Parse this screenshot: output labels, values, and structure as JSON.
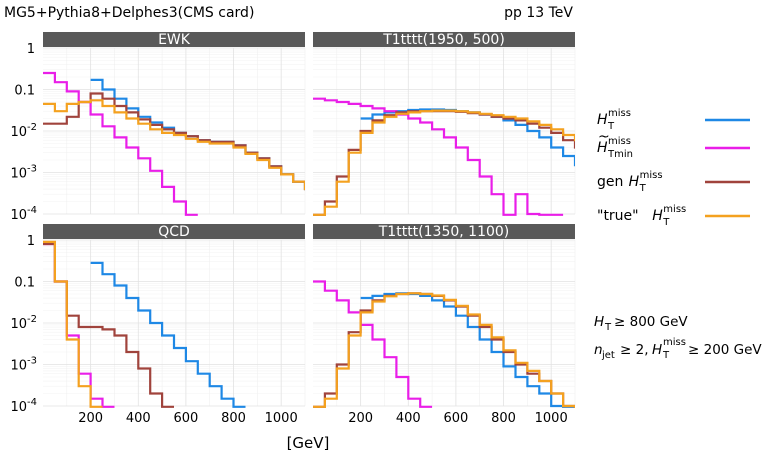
{
  "header": {
    "left": "MG5+Pythia8+Delphes3(CMS card)",
    "right": "pp 13 TeV"
  },
  "chart_data": {
    "type": "line",
    "subtype": "step-histogram-facets",
    "xlabel": "[GeV]",
    "x_ticks": [
      200,
      400,
      600,
      800,
      1000
    ],
    "xlim": [
      0,
      1100
    ],
    "y_scale": "log",
    "ylim": [
      0.0001,
      1
    ],
    "y_tick_labels": [
      "1",
      "0.1",
      "10^-2",
      "10^-3",
      "10^-4"
    ],
    "y_tick_values": [
      1,
      0.1,
      0.01,
      0.001,
      0.0001
    ],
    "grid": true,
    "legend_placement": "right",
    "annotations": [
      "H_T ≥ 800 GeV",
      "n_jet ≥ 2, H_T^miss ≥ 200 GeV"
    ],
    "series_styles": [
      {
        "key": "HTmiss",
        "label_main": "H",
        "label_sub": "T",
        "label_sup": "miss",
        "prefix": "",
        "tilde": false,
        "color": "#1e88e5"
      },
      {
        "key": "HTmin",
        "label_main": "H",
        "label_sub": "Tmin",
        "label_sup": "miss",
        "prefix": "",
        "tilde": true,
        "color": "#e91ee8"
      },
      {
        "key": "gen",
        "label_main": "H",
        "label_sub": "T",
        "label_sup": "miss",
        "prefix": "gen ",
        "tilde": false,
        "color": "#a0433c"
      },
      {
        "key": "true",
        "label_main": "H",
        "label_sub": "T",
        "label_sup": "miss",
        "prefix": "\"true\" ",
        "tilde": false,
        "color": "#f4a11f"
      }
    ],
    "panels": [
      {
        "title": "EWK",
        "series": [
          {
            "key": "HTmiss",
            "x": [
              200,
              250,
              300,
              350,
              400,
              450,
              500,
              550,
              600,
              650,
              700,
              750,
              800,
              850,
              900,
              950,
              1000,
              1050,
              1100
            ],
            "y": [
              0.17,
              0.1,
              0.06,
              0.035,
              0.022,
              0.016,
              0.012,
              0.009,
              0.0075,
              0.006,
              0.0055,
              0.0055,
              0.0045,
              0.003,
              0.0022,
              0.0014,
              0.0009,
              0.0006,
              0.0004
            ]
          },
          {
            "key": "HTmin",
            "x": [
              0,
              50,
              100,
              150,
              200,
              250,
              300,
              350,
              400,
              450,
              500,
              550,
              600
            ],
            "y": [
              0.25,
              0.15,
              0.09,
              0.05,
              0.025,
              0.013,
              0.007,
              0.004,
              0.0022,
              0.0011,
              0.00045,
              0.0002,
              9e-05
            ]
          },
          {
            "key": "gen",
            "x": [
              0,
              50,
              100,
              150,
              200,
              250,
              300,
              350,
              400,
              450,
              500,
              550,
              600,
              650,
              700,
              750,
              800,
              850,
              900,
              950,
              1000,
              1050,
              1100
            ],
            "y": [
              0.015,
              0.015,
              0.022,
              0.05,
              0.08,
              0.06,
              0.04,
              0.028,
              0.019,
              0.014,
              0.011,
              0.009,
              0.0075,
              0.006,
              0.0055,
              0.0055,
              0.0045,
              0.003,
              0.0022,
              0.0014,
              0.0009,
              0.0006,
              0.0004
            ]
          },
          {
            "key": "true",
            "x": [
              0,
              50,
              100,
              150,
              200,
              250,
              300,
              350,
              400,
              450,
              500,
              550,
              600,
              650,
              700,
              750,
              800,
              850,
              900,
              950,
              1000,
              1050,
              1100
            ],
            "y": [
              0.045,
              0.03,
              0.045,
              0.05,
              0.055,
              0.04,
              0.028,
              0.02,
              0.015,
              0.011,
              0.009,
              0.008,
              0.0065,
              0.0055,
              0.005,
              0.005,
              0.004,
              0.0028,
              0.002,
              0.0013,
              0.0009,
              0.0006,
              0.0004
            ]
          }
        ]
      },
      {
        "title": "T1tttt(1950, 500)",
        "series": [
          {
            "key": "HTmiss",
            "x": [
              200,
              250,
              300,
              350,
              400,
              450,
              500,
              550,
              600,
              650,
              700,
              750,
              800,
              850,
              900,
              950,
              1000,
              1050,
              1100
            ],
            "y": [
              0.02,
              0.025,
              0.028,
              0.03,
              0.032,
              0.033,
              0.033,
              0.032,
              0.03,
              0.028,
              0.025,
              0.022,
              0.018,
              0.014,
              0.01,
              0.007,
              0.004,
              0.0025,
              0.0015
            ]
          },
          {
            "key": "HTmin",
            "x": [
              0,
              50,
              100,
              150,
              200,
              250,
              300,
              350,
              400,
              450,
              500,
              550,
              600,
              650,
              700,
              750,
              800,
              850,
              900,
              950,
              1000
            ],
            "y": [
              0.06,
              0.055,
              0.05,
              0.045,
              0.04,
              0.035,
              0.03,
              0.025,
              0.02,
              0.016,
              0.011,
              0.007,
              0.004,
              0.002,
              0.0008,
              0.0003,
              9e-05,
              0.0003,
              0.0001,
              9e-05,
              9e-05
            ]
          },
          {
            "key": "gen",
            "x": [
              0,
              50,
              100,
              150,
              200,
              250,
              300,
              350,
              400,
              450,
              500,
              550,
              600,
              650,
              700,
              750,
              800,
              850,
              900,
              950,
              1000,
              1050,
              1100
            ],
            "y": [
              9e-05,
              0.0002,
              0.0008,
              0.0035,
              0.01,
              0.018,
              0.024,
              0.028,
              0.03,
              0.03,
              0.03,
              0.03,
              0.029,
              0.027,
              0.025,
              0.022,
              0.02,
              0.018,
              0.015,
              0.012,
              0.009,
              0.006,
              0.004
            ]
          },
          {
            "key": "true",
            "x": [
              0,
              50,
              100,
              150,
              200,
              250,
              300,
              350,
              400,
              450,
              500,
              550,
              600,
              650,
              700,
              750,
              800,
              850,
              900,
              950,
              1000,
              1050,
              1100
            ],
            "y": [
              9e-05,
              0.00015,
              0.0006,
              0.003,
              0.009,
              0.016,
              0.022,
              0.026,
              0.028,
              0.03,
              0.031,
              0.031,
              0.03,
              0.028,
              0.026,
              0.024,
              0.022,
              0.02,
              0.017,
              0.014,
              0.011,
              0.008,
              0.006
            ]
          }
        ]
      },
      {
        "title": "QCD",
        "series": [
          {
            "key": "HTmiss",
            "x": [
              200,
              250,
              300,
              350,
              400,
              450,
              500,
              550,
              600,
              650,
              700,
              750,
              800
            ],
            "y": [
              0.28,
              0.15,
              0.08,
              0.04,
              0.02,
              0.01,
              0.005,
              0.0025,
              0.0012,
              0.0006,
              0.0003,
              0.00015,
              9e-05
            ]
          },
          {
            "key": "HTmin",
            "x": [
              0,
              50,
              100,
              150,
              200,
              250
            ],
            "y": [
              0.8,
              0.1,
              0.005,
              0.0006,
              0.00015,
              9e-05
            ]
          },
          {
            "key": "gen",
            "x": [
              0,
              50,
              100,
              150,
              200,
              250,
              300,
              350,
              400,
              450,
              500
            ],
            "y": [
              0.8,
              0.1,
              0.015,
              0.008,
              0.008,
              0.007,
              0.005,
              0.002,
              0.0008,
              0.0002,
              9e-05
            ]
          },
          {
            "key": "true",
            "x": [
              0,
              50,
              100,
              150,
              200
            ],
            "y": [
              0.9,
              0.1,
              0.004,
              0.0003,
              9e-05
            ]
          }
        ]
      },
      {
        "title": "T1tttt(1350, 1100)",
        "series": [
          {
            "key": "HTmiss",
            "x": [
              200,
              250,
              300,
              350,
              400,
              450,
              500,
              550,
              600,
              650,
              700,
              750,
              800,
              850,
              900,
              950,
              1000,
              1050,
              1100
            ],
            "y": [
              0.04,
              0.045,
              0.05,
              0.052,
              0.05,
              0.045,
              0.035,
              0.025,
              0.015,
              0.008,
              0.004,
              0.002,
              0.0009,
              0.0005,
              0.0003,
              0.0002,
              0.0001,
              9e-05,
              9e-05
            ]
          },
          {
            "key": "HTmin",
            "x": [
              0,
              50,
              100,
              150,
              200,
              250,
              300,
              350,
              400,
              450
            ],
            "y": [
              0.1,
              0.06,
              0.035,
              0.018,
              0.009,
              0.004,
              0.0015,
              0.0005,
              0.00015,
              9e-05
            ]
          },
          {
            "key": "gen",
            "x": [
              0,
              50,
              100,
              150,
              200,
              250,
              300,
              350,
              400,
              450,
              500,
              550,
              600,
              650,
              700,
              750,
              800,
              850,
              900,
              950,
              1000,
              1050,
              1100
            ],
            "y": [
              9e-05,
              0.0002,
              0.001,
              0.006,
              0.02,
              0.035,
              0.045,
              0.05,
              0.052,
              0.05,
              0.045,
              0.035,
              0.025,
              0.015,
              0.008,
              0.004,
              0.002,
              0.001,
              0.0006,
              0.0004,
              0.0002,
              0.0001,
              9e-05
            ]
          },
          {
            "key": "true",
            "x": [
              0,
              50,
              100,
              150,
              200,
              250,
              300,
              350,
              400,
              450,
              500,
              550,
              600,
              650,
              700,
              750,
              800,
              850,
              900,
              950,
              1000,
              1050,
              1100
            ],
            "y": [
              9e-05,
              0.00015,
              0.0008,
              0.005,
              0.018,
              0.033,
              0.044,
              0.05,
              0.052,
              0.05,
              0.046,
              0.036,
              0.026,
              0.016,
              0.009,
              0.0045,
              0.0022,
              0.0011,
              0.0007,
              0.0004,
              0.0002,
              0.0001,
              9e-05
            ]
          }
        ]
      }
    ]
  }
}
